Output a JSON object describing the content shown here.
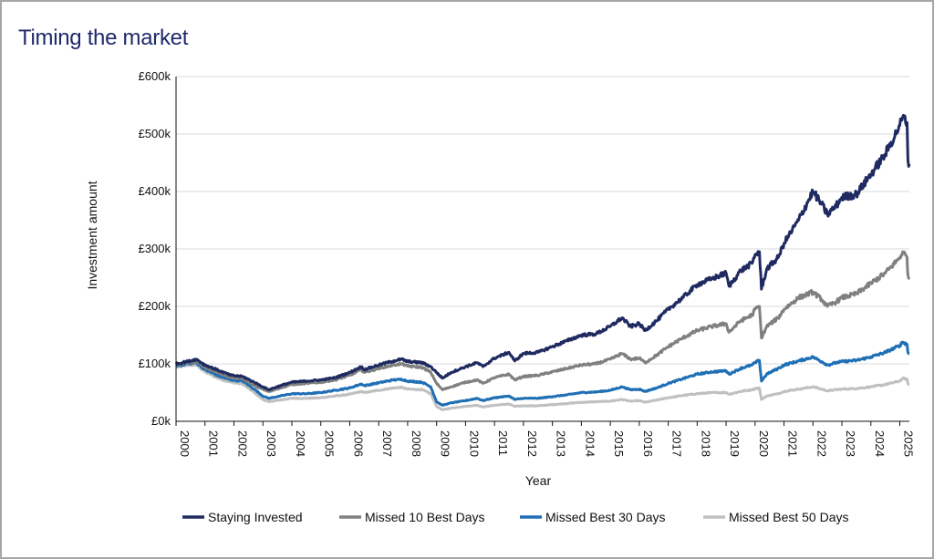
{
  "title": "Timing the market",
  "chart_data": {
    "type": "line",
    "title": "Timing the market",
    "xlabel": "Year",
    "ylabel": "Investment amount",
    "x_ticks": [
      "2000",
      "2001",
      "2002",
      "2003",
      "2004",
      "2005",
      "2006",
      "2007",
      "2008",
      "2009",
      "2010",
      "2011",
      "2012",
      "2013",
      "2014",
      "2015",
      "2016",
      "2017",
      "2018",
      "2019",
      "2020",
      "2021",
      "2022",
      "2023",
      "2024",
      "2025"
    ],
    "y_ticks": [
      "£0k",
      "£100k",
      "£200k",
      "£300k",
      "£400k",
      "£500k",
      "£600k"
    ],
    "xlim": [
      2000,
      2025.33
    ],
    "ylim": [
      0,
      600000
    ],
    "grid": "horizontal",
    "legend_position": "bottom",
    "series": [
      {
        "name": "Staying Invested",
        "color": "#1f2a60",
        "points": [
          [
            2000,
            100000
          ],
          [
            2000.4,
            104000
          ],
          [
            2000.7,
            108000
          ],
          [
            2001.0,
            98000
          ],
          [
            2001.5,
            88000
          ],
          [
            2001.9,
            80000
          ],
          [
            2002.3,
            78000
          ],
          [
            2002.7,
            68000
          ],
          [
            2003.0,
            60000
          ],
          [
            2003.2,
            55000
          ],
          [
            2003.6,
            62000
          ],
          [
            2004.0,
            68000
          ],
          [
            2004.5,
            70000
          ],
          [
            2005.0,
            72000
          ],
          [
            2005.5,
            76000
          ],
          [
            2006.0,
            85000
          ],
          [
            2006.4,
            95000
          ],
          [
            2006.5,
            90000
          ],
          [
            2007.0,
            98000
          ],
          [
            2007.5,
            105000
          ],
          [
            2007.8,
            108000
          ],
          [
            2008.0,
            104000
          ],
          [
            2008.5,
            102000
          ],
          [
            2008.8,
            95000
          ],
          [
            2009.0,
            85000
          ],
          [
            2009.2,
            75000
          ],
          [
            2009.5,
            85000
          ],
          [
            2010.0,
            95000
          ],
          [
            2010.4,
            102000
          ],
          [
            2010.6,
            95000
          ],
          [
            2011.0,
            110000
          ],
          [
            2011.5,
            120000
          ],
          [
            2011.7,
            105000
          ],
          [
            2012.0,
            118000
          ],
          [
            2012.5,
            120000
          ],
          [
            2013.0,
            130000
          ],
          [
            2013.5,
            140000
          ],
          [
            2014.0,
            150000
          ],
          [
            2014.5,
            152000
          ],
          [
            2015.0,
            165000
          ],
          [
            2015.4,
            180000
          ],
          [
            2015.7,
            165000
          ],
          [
            2016.0,
            170000
          ],
          [
            2016.2,
            158000
          ],
          [
            2016.6,
            175000
          ],
          [
            2017.0,
            195000
          ],
          [
            2017.5,
            215000
          ],
          [
            2018.0,
            238000
          ],
          [
            2018.5,
            248000
          ],
          [
            2019.0,
            258000
          ],
          [
            2019.1,
            235000
          ],
          [
            2019.5,
            262000
          ],
          [
            2019.9,
            275000
          ],
          [
            2020.0,
            290000
          ],
          [
            2020.15,
            295000
          ],
          [
            2020.22,
            230000
          ],
          [
            2020.4,
            265000
          ],
          [
            2020.8,
            285000
          ],
          [
            2021.0,
            310000
          ],
          [
            2021.5,
            350000
          ],
          [
            2022.0,
            400000
          ],
          [
            2022.3,
            378000
          ],
          [
            2022.5,
            360000
          ],
          [
            2022.8,
            375000
          ],
          [
            2023.0,
            390000
          ],
          [
            2023.5,
            395000
          ],
          [
            2024.0,
            430000
          ],
          [
            2024.5,
            465000
          ],
          [
            2025.0,
            515000
          ],
          [
            2025.1,
            530000
          ],
          [
            2025.25,
            520000
          ],
          [
            2025.28,
            455000
          ],
          [
            2025.33,
            448000
          ]
        ]
      },
      {
        "name": "Missed 10 Best Days",
        "color": "#808080",
        "points": [
          [
            2000,
            98000
          ],
          [
            2000.4,
            102000
          ],
          [
            2000.7,
            104000
          ],
          [
            2001.0,
            94000
          ],
          [
            2001.5,
            84000
          ],
          [
            2001.9,
            76000
          ],
          [
            2002.3,
            74000
          ],
          [
            2002.7,
            62000
          ],
          [
            2003.0,
            56000
          ],
          [
            2003.2,
            52000
          ],
          [
            2003.6,
            58000
          ],
          [
            2004.0,
            64000
          ],
          [
            2004.5,
            66000
          ],
          [
            2005.0,
            68000
          ],
          [
            2005.5,
            72000
          ],
          [
            2006.0,
            80000
          ],
          [
            2006.4,
            90000
          ],
          [
            2006.5,
            85000
          ],
          [
            2007.0,
            92000
          ],
          [
            2007.5,
            98000
          ],
          [
            2007.8,
            100000
          ],
          [
            2008.0,
            96000
          ],
          [
            2008.5,
            94000
          ],
          [
            2008.8,
            85000
          ],
          [
            2009.0,
            66000
          ],
          [
            2009.2,
            55000
          ],
          [
            2009.5,
            60000
          ],
          [
            2010.0,
            68000
          ],
          [
            2010.4,
            72000
          ],
          [
            2010.6,
            66000
          ],
          [
            2011.0,
            76000
          ],
          [
            2011.5,
            82000
          ],
          [
            2011.7,
            72000
          ],
          [
            2012.0,
            78000
          ],
          [
            2012.5,
            80000
          ],
          [
            2013.0,
            86000
          ],
          [
            2013.5,
            92000
          ],
          [
            2014.0,
            98000
          ],
          [
            2014.5,
            100000
          ],
          [
            2015.0,
            108000
          ],
          [
            2015.4,
            118000
          ],
          [
            2015.7,
            108000
          ],
          [
            2016.0,
            110000
          ],
          [
            2016.2,
            102000
          ],
          [
            2016.6,
            115000
          ],
          [
            2017.0,
            130000
          ],
          [
            2017.5,
            145000
          ],
          [
            2018.0,
            158000
          ],
          [
            2018.5,
            165000
          ],
          [
            2019.0,
            170000
          ],
          [
            2019.1,
            155000
          ],
          [
            2019.5,
            175000
          ],
          [
            2019.9,
            185000
          ],
          [
            2020.0,
            195000
          ],
          [
            2020.15,
            200000
          ],
          [
            2020.22,
            145000
          ],
          [
            2020.4,
            165000
          ],
          [
            2020.8,
            180000
          ],
          [
            2021.0,
            195000
          ],
          [
            2021.5,
            215000
          ],
          [
            2022.0,
            225000
          ],
          [
            2022.3,
            212000
          ],
          [
            2022.5,
            200000
          ],
          [
            2022.8,
            208000
          ],
          [
            2023.0,
            215000
          ],
          [
            2023.5,
            222000
          ],
          [
            2024.0,
            240000
          ],
          [
            2024.5,
            258000
          ],
          [
            2025.0,
            285000
          ],
          [
            2025.1,
            295000
          ],
          [
            2025.25,
            285000
          ],
          [
            2025.28,
            255000
          ],
          [
            2025.33,
            250000
          ]
        ]
      },
      {
        "name": "Missed Best 30 Days",
        "color": "#1f6fb5",
        "points": [
          [
            2000,
            96000
          ],
          [
            2000.4,
            100000
          ],
          [
            2000.7,
            102000
          ],
          [
            2001.0,
            90000
          ],
          [
            2001.5,
            78000
          ],
          [
            2001.9,
            72000
          ],
          [
            2002.3,
            70000
          ],
          [
            2002.7,
            56000
          ],
          [
            2003.0,
            44000
          ],
          [
            2003.2,
            40000
          ],
          [
            2003.6,
            44000
          ],
          [
            2004.0,
            48000
          ],
          [
            2004.5,
            48000
          ],
          [
            2005.0,
            50000
          ],
          [
            2005.5,
            54000
          ],
          [
            2006.0,
            58000
          ],
          [
            2006.4,
            65000
          ],
          [
            2006.5,
            62000
          ],
          [
            2007.0,
            67000
          ],
          [
            2007.5,
            72000
          ],
          [
            2007.8,
            73000
          ],
          [
            2008.0,
            70000
          ],
          [
            2008.5,
            68000
          ],
          [
            2008.8,
            60000
          ],
          [
            2009.0,
            34000
          ],
          [
            2009.2,
            28000
          ],
          [
            2009.5,
            32000
          ],
          [
            2010.0,
            36000
          ],
          [
            2010.4,
            40000
          ],
          [
            2010.6,
            36000
          ],
          [
            2011.0,
            41000
          ],
          [
            2011.5,
            44000
          ],
          [
            2011.7,
            38000
          ],
          [
            2012.0,
            40000
          ],
          [
            2012.5,
            40000
          ],
          [
            2013.0,
            43000
          ],
          [
            2013.5,
            46000
          ],
          [
            2014.0,
            50000
          ],
          [
            2014.5,
            51000
          ],
          [
            2015.0,
            54000
          ],
          [
            2015.4,
            60000
          ],
          [
            2015.7,
            55000
          ],
          [
            2016.0,
            56000
          ],
          [
            2016.2,
            52000
          ],
          [
            2016.6,
            58000
          ],
          [
            2017.0,
            66000
          ],
          [
            2017.5,
            74000
          ],
          [
            2018.0,
            82000
          ],
          [
            2018.5,
            86000
          ],
          [
            2019.0,
            88000
          ],
          [
            2019.1,
            82000
          ],
          [
            2019.5,
            92000
          ],
          [
            2019.9,
            98000
          ],
          [
            2020.0,
            102000
          ],
          [
            2020.15,
            106000
          ],
          [
            2020.22,
            70000
          ],
          [
            2020.4,
            82000
          ],
          [
            2020.8,
            92000
          ],
          [
            2021.0,
            98000
          ],
          [
            2021.5,
            105000
          ],
          [
            2022.0,
            112000
          ],
          [
            2022.3,
            104000
          ],
          [
            2022.5,
            98000
          ],
          [
            2022.8,
            102000
          ],
          [
            2023.0,
            104000
          ],
          [
            2023.5,
            106000
          ],
          [
            2024.0,
            112000
          ],
          [
            2024.5,
            120000
          ],
          [
            2025.0,
            132000
          ],
          [
            2025.1,
            138000
          ],
          [
            2025.25,
            134000
          ],
          [
            2025.28,
            120000
          ],
          [
            2025.33,
            118000
          ]
        ]
      },
      {
        "name": "Missed Best 50 Days",
        "color": "#c0c0c0",
        "points": [
          [
            2000,
            94000
          ],
          [
            2000.4,
            98000
          ],
          [
            2000.7,
            98000
          ],
          [
            2001.0,
            86000
          ],
          [
            2001.5,
            74000
          ],
          [
            2001.9,
            68000
          ],
          [
            2002.3,
            65000
          ],
          [
            2002.7,
            50000
          ],
          [
            2003.0,
            38000
          ],
          [
            2003.2,
            34000
          ],
          [
            2003.6,
            37000
          ],
          [
            2004.0,
            40000
          ],
          [
            2004.5,
            40000
          ],
          [
            2005.0,
            41000
          ],
          [
            2005.5,
            44000
          ],
          [
            2006.0,
            47000
          ],
          [
            2006.4,
            52000
          ],
          [
            2006.5,
            50000
          ],
          [
            2007.0,
            54000
          ],
          [
            2007.5,
            58000
          ],
          [
            2007.8,
            59000
          ],
          [
            2008.0,
            56000
          ],
          [
            2008.5,
            55000
          ],
          [
            2008.8,
            48000
          ],
          [
            2009.0,
            26000
          ],
          [
            2009.2,
            20000
          ],
          [
            2009.5,
            23000
          ],
          [
            2010.0,
            26000
          ],
          [
            2010.4,
            28000
          ],
          [
            2010.6,
            25000
          ],
          [
            2011.0,
            28000
          ],
          [
            2011.5,
            30000
          ],
          [
            2011.7,
            26000
          ],
          [
            2012.0,
            27000
          ],
          [
            2012.5,
            27000
          ],
          [
            2013.0,
            29000
          ],
          [
            2013.5,
            31000
          ],
          [
            2014.0,
            33000
          ],
          [
            2014.5,
            34000
          ],
          [
            2015.0,
            35000
          ],
          [
            2015.4,
            38000
          ],
          [
            2015.7,
            35000
          ],
          [
            2016.0,
            36000
          ],
          [
            2016.2,
            33000
          ],
          [
            2016.6,
            37000
          ],
          [
            2017.0,
            41000
          ],
          [
            2017.5,
            45000
          ],
          [
            2018.0,
            48000
          ],
          [
            2018.5,
            50000
          ],
          [
            2019.0,
            50000
          ],
          [
            2019.1,
            47000
          ],
          [
            2019.5,
            52000
          ],
          [
            2019.9,
            55000
          ],
          [
            2020.0,
            57000
          ],
          [
            2020.15,
            58000
          ],
          [
            2020.22,
            38000
          ],
          [
            2020.4,
            44000
          ],
          [
            2020.8,
            48000
          ],
          [
            2021.0,
            52000
          ],
          [
            2021.5,
            56000
          ],
          [
            2022.0,
            60000
          ],
          [
            2022.3,
            56000
          ],
          [
            2022.5,
            53000
          ],
          [
            2022.8,
            55000
          ],
          [
            2023.0,
            56000
          ],
          [
            2023.5,
            57000
          ],
          [
            2024.0,
            60000
          ],
          [
            2024.5,
            64000
          ],
          [
            2025.0,
            70000
          ],
          [
            2025.1,
            75000
          ],
          [
            2025.25,
            73000
          ],
          [
            2025.28,
            66000
          ],
          [
            2025.33,
            64000
          ]
        ]
      }
    ]
  }
}
